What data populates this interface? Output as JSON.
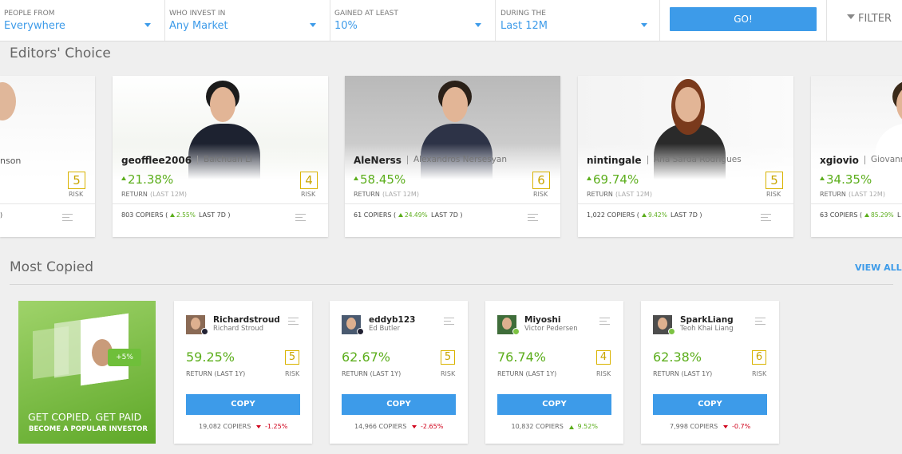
{
  "filters": [
    {
      "label": "PEOPLE FROM",
      "value": "Everywhere"
    },
    {
      "label": "WHO INVEST IN",
      "value": "Any Market"
    },
    {
      "label": "GAINED AT LEAST",
      "value": "10%"
    },
    {
      "label": "DURING THE",
      "value": "Last 12M"
    }
  ],
  "go_button": "GO!",
  "filter_button": "FILTER",
  "editors_choice": {
    "title": "Editors' Choice",
    "partial_card": {
      "name": "nson",
      "risk": "5",
      "risk_label": "RISK",
      "copiers": ")"
    },
    "cards": [
      {
        "username": "geofflee2006",
        "full_name": "Baichuan Li",
        "return": "21.38%",
        "return_label": "RETURN",
        "period": "(LAST 12M)",
        "risk": "4",
        "risk_label": "RISK",
        "copiers": "803 COPIERS (",
        "change": "2.55%",
        "change_period": "LAST 7D )"
      },
      {
        "username": "AleNerss",
        "full_name": "Alexandros Nersesyan",
        "return": "58.45%",
        "return_label": "RETURN",
        "period": "(LAST 12M)",
        "risk": "6",
        "risk_label": "RISK",
        "copiers": "61 COPIERS (",
        "change": "24.49%",
        "change_period": "LAST 7D )"
      },
      {
        "username": "nintingale",
        "full_name": "Ana Sarda Rodrigues",
        "return": "69.74%",
        "return_label": "RETURN",
        "period": "(LAST 12M)",
        "risk": "5",
        "risk_label": "RISK",
        "copiers": "1,022 COPIERS (",
        "change": "9.42%",
        "change_period": "LAST 7D )"
      },
      {
        "username": "xgiovio",
        "full_name": "Giovanni",
        "return": "34.35%",
        "return_label": "RETURN",
        "period": "(LAST 12M)",
        "copiers": "63 COPIERS (",
        "change": "85.29%",
        "change_period": "L"
      }
    ]
  },
  "most_copied": {
    "title": "Most Copied",
    "view_all": "VIEW ALL",
    "promo": {
      "badge": "+5%",
      "headline": "GET COPIED. GET PAID",
      "subline": "BECOME A POPULAR INVESTOR"
    },
    "cards": [
      {
        "username": "Richardstroud",
        "full_name": "Richard Stroud",
        "gain": "59.25%",
        "return_label": "RETURN (LAST 1Y)",
        "risk": "5",
        "risk_label": "RISK",
        "button": "COPY",
        "copiers": "19,082 COPIERS",
        "change": "-1.25%",
        "direction": "down"
      },
      {
        "username": "eddyb123",
        "full_name": "Ed Butler",
        "gain": "62.67%",
        "return_label": "RETURN (LAST 1Y)",
        "risk": "5",
        "risk_label": "RISK",
        "button": "COPY",
        "copiers": "14,966 COPIERS",
        "change": "-2.65%",
        "direction": "down"
      },
      {
        "username": "Miyoshi",
        "full_name": "Victor Pedersen",
        "gain": "76.74%",
        "return_label": "RETURN (LAST 1Y)",
        "risk": "4",
        "risk_label": "RISK",
        "button": "COPY",
        "copiers": "10,832 COPIERS",
        "change": "9.52%",
        "direction": "up"
      },
      {
        "username": "SparkLiang",
        "full_name": "Teoh Khai Liang",
        "gain": "62.38%",
        "return_label": "RETURN (LAST 1Y)",
        "risk": "6",
        "risk_label": "RISK",
        "button": "COPY",
        "copiers": "7,998 COPIERS",
        "change": "-0.7%",
        "direction": "down"
      }
    ]
  }
}
